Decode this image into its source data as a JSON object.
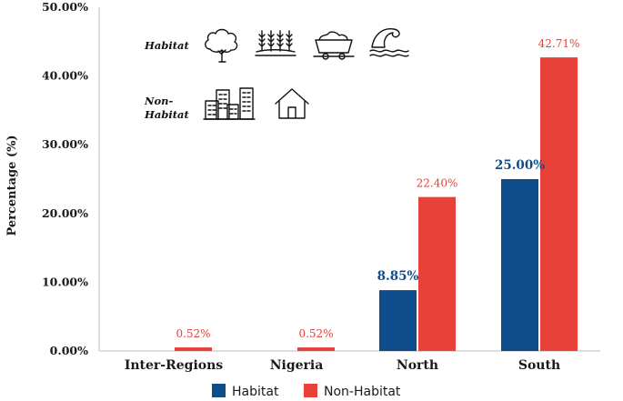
{
  "chart_data": {
    "type": "bar",
    "ylabel": "Percentage (%)",
    "xlabel": "",
    "ylim": [
      0,
      50
    ],
    "yticks": [
      "0.00%",
      "10.00%",
      "20.00%",
      "30.00%",
      "40.00%",
      "50.00%"
    ],
    "ytick_values": [
      0,
      10,
      20,
      30,
      40,
      50
    ],
    "categories": [
      "Inter-Regions",
      "Nigeria",
      "North",
      "South"
    ],
    "series": [
      {
        "name": "Habitat",
        "color": "#0f4c8c",
        "values": [
          0,
          0,
          8.85,
          25.0
        ],
        "labels": [
          "",
          "",
          "8.85%",
          "25.00%"
        ]
      },
      {
        "name": "Non-Habitat",
        "color": "#e8413a",
        "values": [
          0.52,
          0.52,
          22.4,
          42.71
        ],
        "labels": [
          "0.52%",
          "0.52%",
          "22.40%",
          "42.71%"
        ]
      }
    ],
    "legend": {
      "position": "bottom",
      "items": [
        "Habitat",
        "Non-Habitat"
      ]
    },
    "annotations": {
      "habitat_label": "Habitat",
      "non_habitat_label_line1": "Non-",
      "non_habitat_label_line2": "Habitat",
      "habitat_icons": [
        "tree-icon",
        "wheat-field-icon",
        "mining-cart-icon",
        "wave-icon"
      ],
      "non_habitat_icons": [
        "buildings-icon",
        "house-icon"
      ]
    }
  }
}
